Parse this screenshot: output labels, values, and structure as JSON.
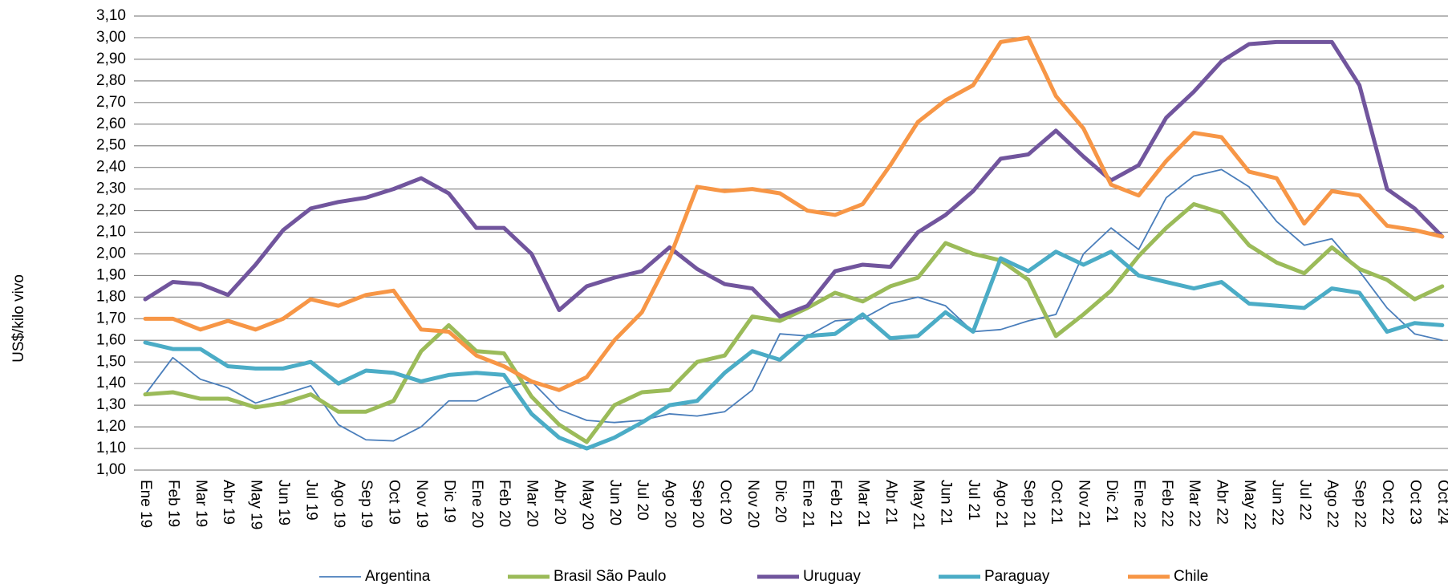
{
  "chart_data": {
    "type": "line",
    "y_label": "US$/kilo vivo",
    "categories": [
      "Ene 19",
      "Feb 19",
      "Mar 19",
      "Abr 19",
      "May 19",
      "Jun 19",
      "Jul 19",
      "Ago 19",
      "Sep 19",
      "Oct 19",
      "Nov 19",
      "Dic 19",
      "Ene 20",
      "Feb 20",
      "Mar 20",
      "Abr 20",
      "May 20",
      "Jun 20",
      "Jul 20",
      "Ago 20",
      "Sep 20",
      "Oct 20",
      "Nov 20",
      "Dic 20",
      "Ene 21",
      "Feb 21",
      "Mar 21",
      "Abr 21",
      "May 21",
      "Jun 21",
      "Jul 21",
      "Ago 21",
      "Sep 21",
      "Oct 21",
      "Nov 21",
      "Dic 21",
      "Ene 22",
      "Feb 22",
      "Mar 22",
      "Abr 22",
      "May 22",
      "Jun 22",
      "Jul 22",
      "Ago 22",
      "Sep 22",
      "Oct 22",
      "Oct 23",
      "Oct 24"
    ],
    "series": [
      {
        "name": "Argentina",
        "color": "#4a7ebb",
        "width": 1.8,
        "values": [
          1.35,
          1.52,
          1.42,
          1.38,
          1.31,
          1.35,
          1.39,
          1.21,
          1.14,
          1.135,
          1.2,
          1.32,
          1.32,
          1.38,
          1.41,
          1.28,
          1.23,
          1.22,
          1.23,
          1.26,
          1.25,
          1.27,
          1.37,
          1.63,
          1.62,
          1.69,
          1.7,
          1.77,
          1.8,
          1.76,
          1.64,
          1.65,
          1.69,
          1.72,
          2.0,
          2.12,
          2.02,
          2.26,
          2.36,
          2.39,
          2.31,
          2.15,
          2.04,
          2.07,
          1.92,
          1.75,
          1.63,
          1.6
        ]
      },
      {
        "name": "Brasil São Paulo",
        "color": "#9bbb59",
        "width": 5,
        "values": [
          1.35,
          1.36,
          1.33,
          1.33,
          1.29,
          1.31,
          1.35,
          1.27,
          1.27,
          1.32,
          1.55,
          1.67,
          1.55,
          1.54,
          1.34,
          1.21,
          1.13,
          1.3,
          1.36,
          1.37,
          1.5,
          1.53,
          1.71,
          1.69,
          1.75,
          1.82,
          1.78,
          1.85,
          1.89,
          2.05,
          2.0,
          1.97,
          1.88,
          1.62,
          1.72,
          1.83,
          1.99,
          2.12,
          2.23,
          2.19,
          2.04,
          1.96,
          1.91,
          2.03,
          1.93,
          1.88,
          1.79,
          1.85
        ]
      },
      {
        "name": "Uruguay",
        "color": "#71559d",
        "width": 5,
        "values": [
          1.79,
          1.87,
          1.86,
          1.81,
          1.95,
          2.11,
          2.21,
          2.24,
          2.26,
          2.3,
          2.35,
          2.28,
          2.12,
          2.12,
          2.0,
          1.74,
          1.85,
          1.89,
          1.92,
          2.03,
          1.93,
          1.86,
          1.84,
          1.71,
          1.76,
          1.92,
          1.95,
          1.94,
          2.1,
          2.18,
          2.29,
          2.44,
          2.46,
          2.57,
          2.45,
          2.34,
          2.41,
          2.63,
          2.75,
          2.89,
          2.97,
          2.98,
          2.98,
          2.98,
          2.78,
          2.3,
          2.21,
          2.08
        ]
      },
      {
        "name": "Paraguay",
        "color": "#4bacc6",
        "width": 5,
        "values": [
          1.59,
          1.56,
          1.56,
          1.48,
          1.47,
          1.47,
          1.5,
          1.4,
          1.46,
          1.45,
          1.41,
          1.44,
          1.45,
          1.44,
          1.26,
          1.15,
          1.1,
          1.15,
          1.22,
          1.3,
          1.32,
          1.45,
          1.55,
          1.51,
          1.62,
          1.63,
          1.72,
          1.61,
          1.62,
          1.73,
          1.64,
          1.98,
          1.92,
          2.01,
          1.95,
          2.01,
          1.9,
          1.87,
          1.84,
          1.87,
          1.77,
          1.76,
          1.75,
          1.84,
          1.82,
          1.64,
          1.68,
          1.67
        ]
      },
      {
        "name": "Chile",
        "color": "#f79646",
        "width": 5,
        "values": [
          1.7,
          1.7,
          1.65,
          1.69,
          1.65,
          1.7,
          1.79,
          1.76,
          1.81,
          1.83,
          1.65,
          1.64,
          1.53,
          1.48,
          1.41,
          1.37,
          1.43,
          1.6,
          1.73,
          1.98,
          2.31,
          2.29,
          2.3,
          2.28,
          2.2,
          2.18,
          2.23,
          2.41,
          2.61,
          2.71,
          2.78,
          2.98,
          3.0,
          2.73,
          2.58,
          2.32,
          2.27,
          2.43,
          2.56,
          2.54,
          2.38,
          2.35,
          2.14,
          2.29,
          2.27,
          2.13,
          2.11,
          2.08
        ]
      }
    ],
    "ylim": [
      1.0,
      3.1
    ],
    "yticks": [
      {
        "value": 1.0,
        "label": "1,00"
      },
      {
        "value": 1.1,
        "label": "1,10"
      },
      {
        "value": 1.2,
        "label": "1,20"
      },
      {
        "value": 1.3,
        "label": "1,30"
      },
      {
        "value": 1.4,
        "label": "1,40"
      },
      {
        "value": 1.5,
        "label": "1,50"
      },
      {
        "value": 1.6,
        "label": "1,60"
      },
      {
        "value": 1.7,
        "label": "1,70"
      },
      {
        "value": 1.8,
        "label": "1,80"
      },
      {
        "value": 1.9,
        "label": "1,90"
      },
      {
        "value": 2.0,
        "label": "2,00"
      },
      {
        "value": 2.1,
        "label": "2,10"
      },
      {
        "value": 2.2,
        "label": "2,20"
      },
      {
        "value": 2.3,
        "label": "2,30"
      },
      {
        "value": 2.4,
        "label": "2,40"
      },
      {
        "value": 2.5,
        "label": "2,50"
      },
      {
        "value": 2.6,
        "label": "2,60"
      },
      {
        "value": 2.7,
        "label": "2,70"
      },
      {
        "value": 2.8,
        "label": "2,80"
      },
      {
        "value": 2.9,
        "label": "2,90"
      },
      {
        "value": 3.0,
        "label": "3,00"
      },
      {
        "value": 3.1,
        "label": "3,10"
      }
    ],
    "grid": true,
    "legend": "bottom"
  }
}
